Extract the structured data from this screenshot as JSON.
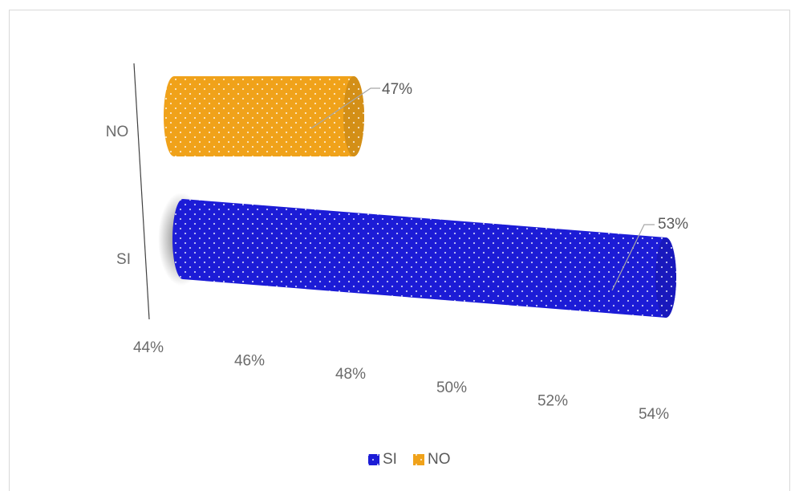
{
  "chart_data": {
    "type": "bar",
    "orientation": "horizontal",
    "style": "3d-cylinder",
    "categories": [
      "SI",
      "NO"
    ],
    "series": [
      {
        "name": "SI",
        "category": "SI",
        "value": 53,
        "label": "53%",
        "color": "#1c1cd6"
      },
      {
        "name": "NO",
        "category": "NO",
        "value": 47,
        "label": "47%",
        "color": "#f0a21a"
      }
    ],
    "xlim": [
      44,
      54
    ],
    "xticks": [
      "44%",
      "46%",
      "48%",
      "50%",
      "52%",
      "54%"
    ],
    "title": "",
    "xlabel": "",
    "ylabel": "",
    "grid": false,
    "legend_position": "bottom"
  }
}
